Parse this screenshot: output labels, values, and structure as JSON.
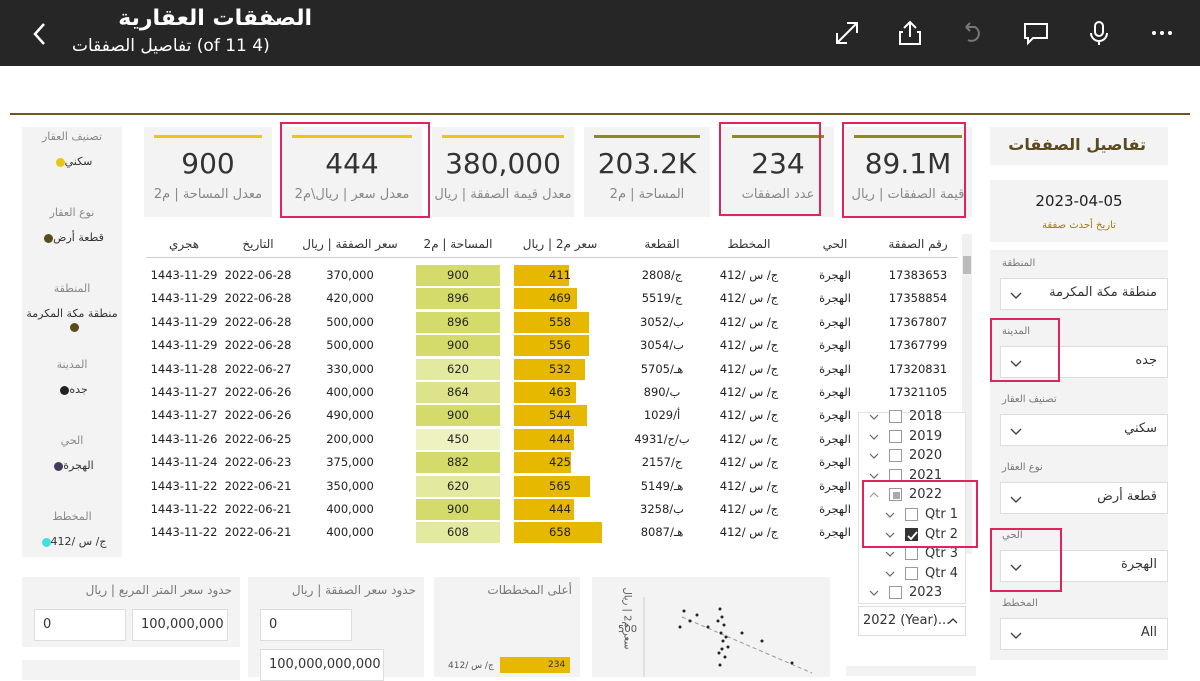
{
  "header": {
    "title": "الصفقات العقارية",
    "subtitle": "(4 of 11) تفاصيل الصفقات"
  },
  "icons": {
    "back": "chevron-left-icon",
    "expand": "expand-icon",
    "share": "share-icon",
    "undo": "undo-icon",
    "comment": "comment-icon",
    "mic": "microphone-icon",
    "more": "more-icon"
  },
  "colors": {
    "topbar": "#262626",
    "gold": "#e6b800",
    "olive": "#8a8a1e",
    "highlight": "#e0245e"
  },
  "kpis": [
    {
      "value": "89.1M",
      "label": "قيمة الصفقات | ريال"
    },
    {
      "value": "234",
      "label": "عدد الصفقات"
    },
    {
      "value": "203.2K",
      "label": "المساحة | م2"
    },
    {
      "value": "380,000",
      "label": "معدل قيمة الصفقة | ريال"
    },
    {
      "value": "444",
      "label": "معدل سعر | ريال\\م2"
    },
    {
      "value": "900",
      "label": "معدل المساحة | م2"
    }
  ],
  "left_filters": [
    {
      "label": "تصنيف العقار",
      "value": "سكني",
      "color": "#e6c619"
    },
    {
      "label": "نوع العقار",
      "value": "قطعة أرض",
      "color": "#5a4a1e"
    },
    {
      "label": "المنطقة",
      "value": "منطقة مكة المكرمة",
      "color": "#5a4a1e"
    },
    {
      "label": "المدينة",
      "value": "جده",
      "color": "#222222"
    },
    {
      "label": "الحي",
      "value": "الهجرة",
      "color": "#443a5a"
    },
    {
      "label": "المخطط",
      "value": "ج/ س /412",
      "color": "#3ee0e0"
    }
  ],
  "right": {
    "title": "تفاصيل الصفقات",
    "latest_date": "2023-04-05",
    "latest_label": "تاريخ أحدث صفقة",
    "slicers": [
      {
        "label": "المنطقة",
        "value": "منطقة مكة المكرمة"
      },
      {
        "label": "المدينة",
        "value": "جده"
      },
      {
        "label": "تصنيف العقار",
        "value": "سكني"
      },
      {
        "label": "نوع العقار",
        "value": "قطعة أرض"
      },
      {
        "label": "الحي",
        "value": "الهجرة"
      },
      {
        "label": "المخطط",
        "value": "All"
      }
    ]
  },
  "table": {
    "headers": [
      "رقم الصفقة",
      "الحي",
      "المخطط",
      "القطعة",
      "سعر م2 | ريال",
      "المساحة | م2",
      "سعر الصفقة | ريال",
      "التاريخ",
      "هجري"
    ],
    "rows": [
      {
        "id": "17383653",
        "district": "الهجرة",
        "plan": "ج/ س /412",
        "plot": "ج/2808",
        "price_m2": "411",
        "area": "900",
        "deal": "370,000",
        "date": "2022-06-28",
        "hijri": "1443-11-29"
      },
      {
        "id": "17358854",
        "district": "الهجرة",
        "plan": "ج/ س /412",
        "plot": "ج/5519",
        "price_m2": "469",
        "area": "896",
        "deal": "420,000",
        "date": "2022-06-28",
        "hijri": "1443-11-29"
      },
      {
        "id": "17367807",
        "district": "الهجرة",
        "plan": "ج/ س /412",
        "plot": "ب/3052",
        "price_m2": "558",
        "area": "896",
        "deal": "500,000",
        "date": "2022-06-28",
        "hijri": "1443-11-29"
      },
      {
        "id": "17367799",
        "district": "الهجرة",
        "plan": "ج/ س /412",
        "plot": "ب/3054",
        "price_m2": "556",
        "area": "900",
        "deal": "500,000",
        "date": "2022-06-28",
        "hijri": "1443-11-29"
      },
      {
        "id": "17320831",
        "district": "الهجرة",
        "plan": "ج/ س /412",
        "plot": "هـ/5705",
        "price_m2": "532",
        "area": "620",
        "deal": "330,000",
        "date": "2022-06-27",
        "hijri": "1443-11-28"
      },
      {
        "id": "17321105",
        "district": "الهجرة",
        "plan": "ج/ س /412",
        "plot": "ب/890",
        "price_m2": "463",
        "area": "864",
        "deal": "400,000",
        "date": "2022-06-26",
        "hijri": "1443-11-27"
      },
      {
        "id": "",
        "district": "الهجرة",
        "plan": "ج/ س /412",
        "plot": "أ/1029",
        "price_m2": "544",
        "area": "900",
        "deal": "490,000",
        "date": "2022-06-26",
        "hijri": "1443-11-27"
      },
      {
        "id": "",
        "district": "الهجرة",
        "plan": "ج/ س /412",
        "plot": "ب/ج/4931",
        "price_m2": "444",
        "area": "450",
        "deal": "200,000",
        "date": "2022-06-25",
        "hijri": "1443-11-26"
      },
      {
        "id": "",
        "district": "الهجرة",
        "plan": "ج/ س /412",
        "plot": "ج/2157",
        "price_m2": "425",
        "area": "882",
        "deal": "375,000",
        "date": "2022-06-23",
        "hijri": "1443-11-24"
      },
      {
        "id": "",
        "district": "الهجرة",
        "plan": "ج/ س /412",
        "plot": "هـ/5149",
        "price_m2": "565",
        "area": "620",
        "deal": "350,000",
        "date": "2022-06-21",
        "hijri": "1443-11-22"
      },
      {
        "id": "",
        "district": "الهجرة",
        "plan": "ج/ س /412",
        "plot": "ب/3258",
        "price_m2": "444",
        "area": "900",
        "deal": "400,000",
        "date": "2022-06-21",
        "hijri": "1443-11-22"
      },
      {
        "id": "",
        "district": "الهجرة",
        "plan": "ج/ س /412",
        "plot": "هـ/8087",
        "price_m2": "658",
        "area": "608",
        "deal": "400,000",
        "date": "2022-06-21",
        "hijri": "1443-11-22"
      }
    ]
  },
  "date_slicer": {
    "items": [
      "2018",
      "2019",
      "2020",
      "2021",
      "2022",
      "Qtr 1",
      "Qtr 2",
      "Qtr 3",
      "Qtr 4",
      "2023"
    ],
    "dropdown": "2022 (Year)..."
  },
  "bottom": {
    "price_m2_title": "حدود سعر المتر المربع | ريال",
    "price_m2_min": "0",
    "price_m2_max": "100,000,000",
    "deal_title": "حدود سعر الصفقة | ريال",
    "deal_min": "0",
    "deal_max": "100,000,000,000",
    "top_plans_title": "أعلى المخططات",
    "top_plan_label": "ج/ س /412",
    "top_plan_value": "234",
    "scatter_tick": "500",
    "scatter_axis": "سعر م2 | ريال"
  }
}
